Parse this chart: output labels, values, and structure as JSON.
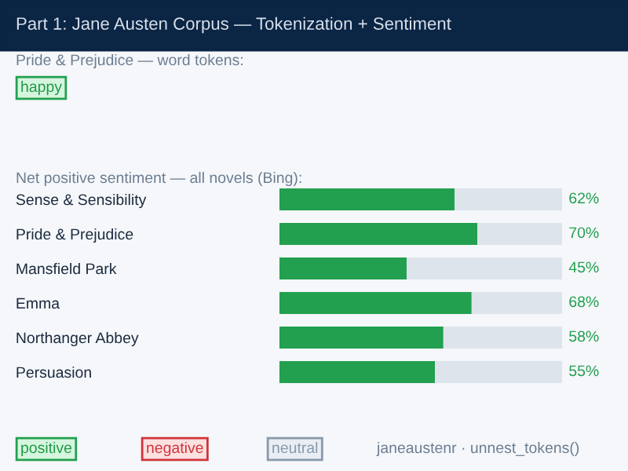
{
  "chart_data": {
    "type": "bar",
    "orientation": "horizontal",
    "stacked": true,
    "title": "Part 1: Jane Austen Corpus — Tokenization + Sentiment",
    "categories": [
      "Sense & Sensibility",
      "Pride & Prejudice",
      "Mansfield Park",
      "Emma",
      "Northanger Abbey",
      "Persuasion"
    ],
    "series": [
      {
        "color": "#22a04f",
        "values": [
          62,
          70,
          45,
          68,
          58,
          55
        ],
        "value_labels": [
          "62%",
          "70%",
          "45%",
          "68%",
          "58%",
          "55%"
        ]
      },
      {
        "color": "#dde4ec",
        "values": [
          38,
          30,
          55,
          32,
          42,
          45
        ]
      }
    ],
    "xlim": [
      0,
      100
    ],
    "tick_labels": "y",
    "grid": false,
    "legend": false,
    "annotations": [
      "Pride & Prejudice — word tokens:",
      "happy",
      "Net positive sentiment — all novels (Bing):",
      "positive",
      "negative",
      "neutral",
      "janeaustenr · unnest_tokens()"
    ]
  }
}
